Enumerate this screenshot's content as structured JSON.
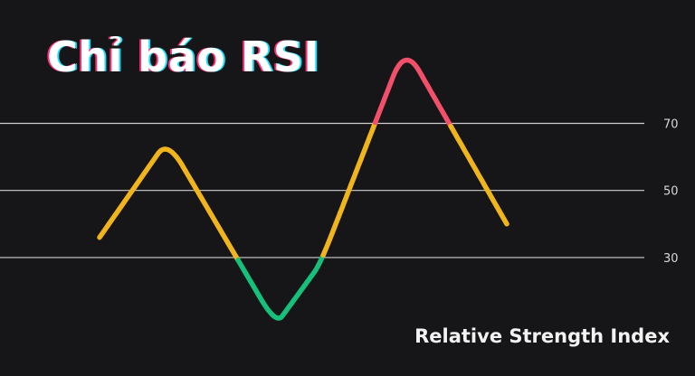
{
  "title": "Chỉ báo RSI",
  "subtitle": "Relative Strength Index",
  "chart_data": {
    "type": "line",
    "title": "Chỉ báo RSI",
    "subtitle": "Relative Strength Index",
    "ylim": [
      6,
      96
    ],
    "xlim": [
      0,
      12
    ],
    "levels": [
      {
        "value": 70,
        "label": "70"
      },
      {
        "value": 50,
        "label": "50"
      },
      {
        "value": 30,
        "label": "30"
      }
    ],
    "series": [
      {
        "x": [
          0,
          2,
          5.2,
          6.5,
          9,
          12
        ],
        "values": [
          36,
          65,
          10,
          28,
          93,
          40
        ]
      }
    ],
    "grid": true,
    "colors": {
      "background": "#161619",
      "neutral": "#f0b41c",
      "overbought": "#f2506a",
      "oversold": "#17c07a",
      "gridline": "#cfcfcf",
      "tick_text": "#d8d8d8"
    }
  }
}
